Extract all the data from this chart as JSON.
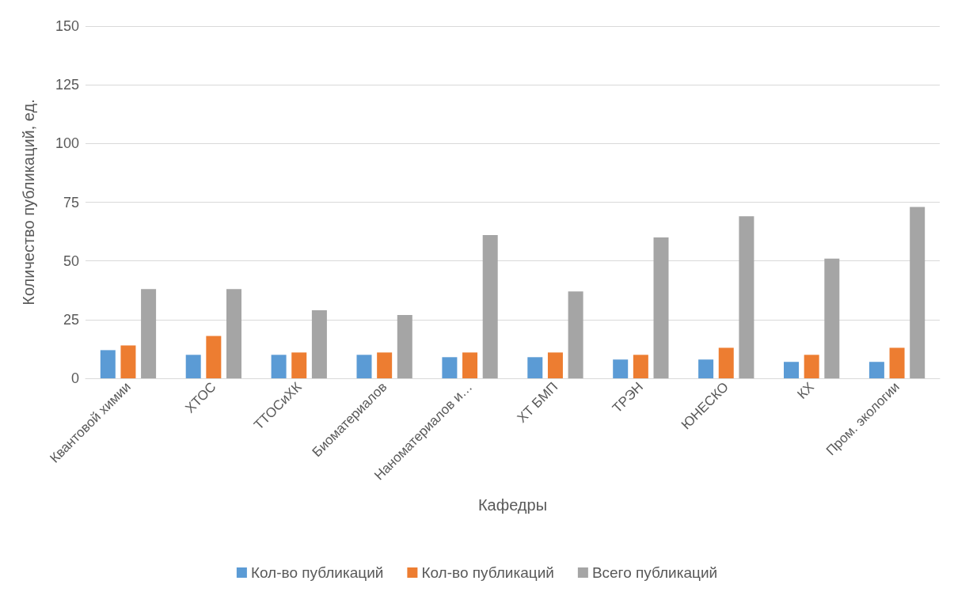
{
  "chart_data": {
    "type": "bar",
    "xlabel": "Кафедры",
    "ylabel": "Количество публикаций, ед.",
    "categories": [
      "Квантовой химии",
      "ХТОС",
      "ТТОСиХК",
      "Биоматериалов",
      "Наноматериалов и…",
      "ХТ БМП",
      "ТРЭН",
      "ЮНЕСКО",
      "КХ",
      "Пром. экологии"
    ],
    "series": [
      {
        "name": "Кол-во публикаций",
        "color": "#5b9bd5",
        "values": [
          12,
          10,
          10,
          10,
          9,
          9,
          8,
          8,
          7,
          7
        ]
      },
      {
        "name": "Кол-во публикаций",
        "color": "#ed7d31",
        "values": [
          14,
          18,
          11,
          11,
          11,
          11,
          10,
          13,
          10,
          13
        ]
      },
      {
        "name": "Всего публикаций",
        "color": "#a5a5a5",
        "values": [
          38,
          38,
          29,
          27,
          61,
          37,
          60,
          69,
          51,
          73
        ]
      }
    ],
    "ylim": [
      0,
      150
    ],
    "yticks": [
      0,
      25,
      50,
      75,
      100,
      125,
      150
    ],
    "grid": "y",
    "legend": "bottom"
  }
}
